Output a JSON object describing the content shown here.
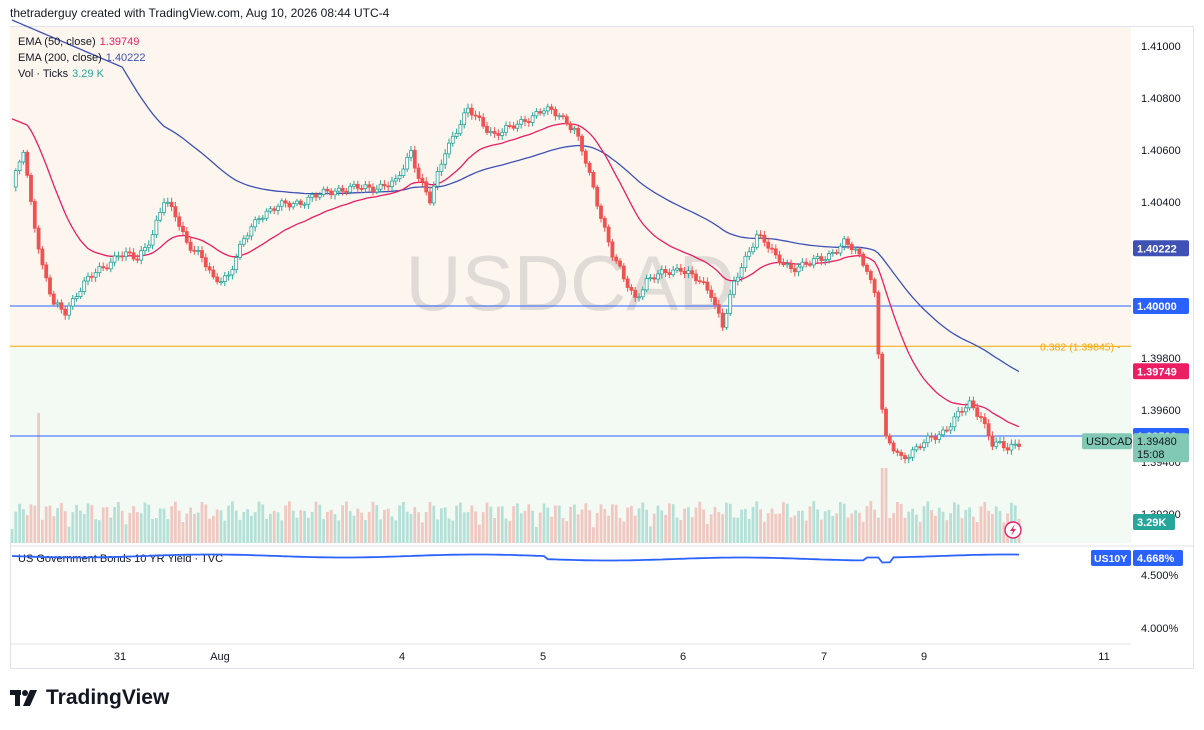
{
  "header": {
    "text": "thetraderguy created with TradingView.com, Aug 10, 2026 08:44 UTC-4"
  },
  "legend": {
    "ema50": {
      "label": "EMA (50, close)",
      "value": "1.39749",
      "color": "#e91e63"
    },
    "ema200": {
      "label": "EMA (200, close)",
      "value": "1.40222",
      "color": "#3f51b5"
    },
    "vol": {
      "label": "Vol · Ticks",
      "value": "3.29 K",
      "color": "#26a69a"
    }
  },
  "watermark": "USDCAD",
  "fib": {
    "label": "0.382 (1.39845)",
    "level": 1.39845
  },
  "hlines": [
    {
      "level": 1.4,
      "color": "#2962ff"
    },
    {
      "level": 1.395,
      "color": "#2962ff"
    }
  ],
  "price_badges": {
    "ema200": "1.40222",
    "level_1_40000": "1.40000",
    "ema50": "1.39749",
    "level_1_39500": "1.39500",
    "symbol": "USDCAD",
    "last": "1.39480",
    "countdown": "15:08",
    "volume": "3.29K"
  },
  "bottom_pane": {
    "title": "US Government Bonds 10 YR Yield · TVC",
    "badge_symbol": "US10Y",
    "badge_value": "4.668%",
    "ticks": [
      "4.500%",
      "4.000%"
    ]
  },
  "x_axis": {
    "ticks": [
      "31",
      "Aug",
      "4",
      "5",
      "6",
      "7",
      "9",
      "11"
    ]
  },
  "colors": {
    "up": "#26a69a",
    "down": "#ef5350",
    "ema50": "#e91e63",
    "ema200": "#3f51b5",
    "fib": "#f7a600",
    "level": "#2962ff"
  },
  "brand": "TradingView",
  "chart_data": {
    "type": "candlestick",
    "symbol": "USDCAD",
    "y_axis_ticks": [
      "1.41000",
      "1.40800",
      "1.40600",
      "1.40400",
      "1.39800",
      "1.39600",
      "1.39400",
      "1.39200"
    ],
    "ylim": [
      1.3915,
      1.4118
    ],
    "key_points": {
      "open_first": 1.4048,
      "high_day4": 1.408,
      "low_day6": 1.399,
      "drop_day7_low": 1.394,
      "last_close": 1.3948
    },
    "volume_last": "3.29K",
    "bond_yield": {
      "name": "US10Y",
      "last": "4.668%"
    }
  }
}
